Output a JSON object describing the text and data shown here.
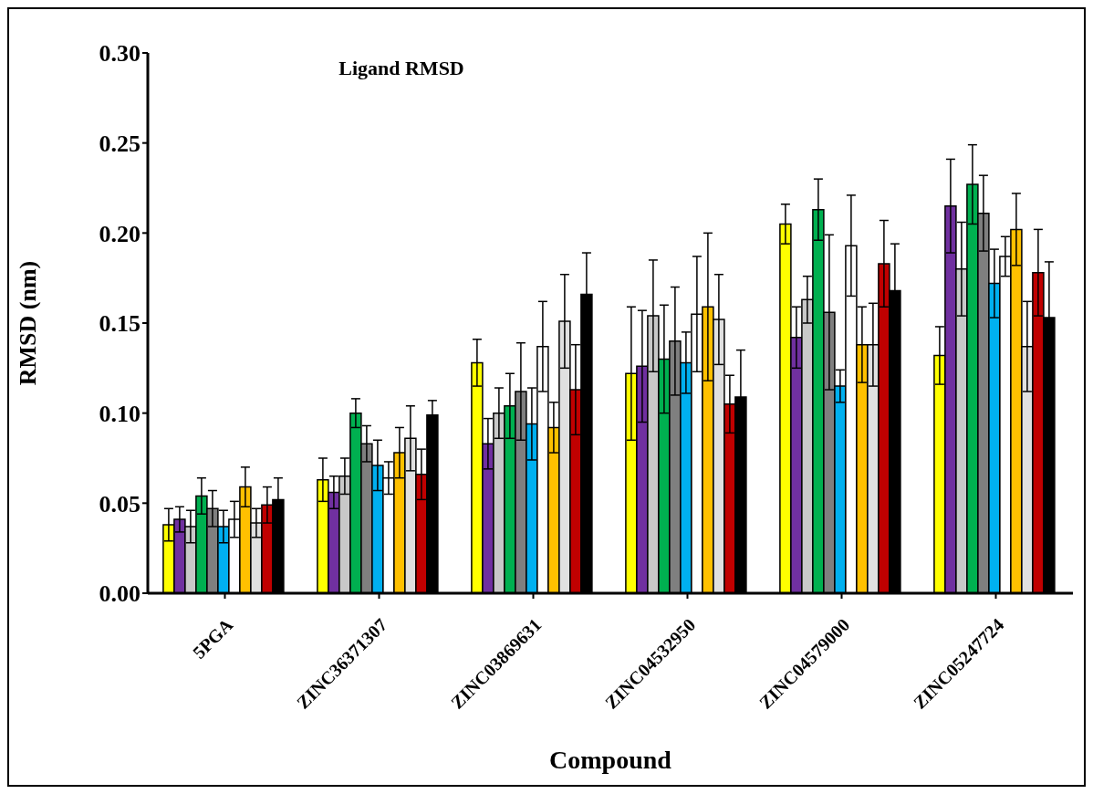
{
  "chart_data": {
    "type": "bar",
    "title": "Ligand RMSD",
    "xlabel": "Compound",
    "ylabel": "RMSD (nm)",
    "categories": [
      "5PGA",
      "ZINC36371307",
      "ZINC03869631",
      "ZINC04532950",
      "ZINC04579000",
      "ZINC05247724"
    ],
    "series": [
      {
        "color": "#ffff00",
        "values": [
          0.038,
          0.063,
          0.128,
          0.122,
          0.205,
          0.132
        ],
        "errors": [
          0.009,
          0.012,
          0.013,
          0.037,
          0.011,
          0.016
        ]
      },
      {
        "color": "#7030a0",
        "values": [
          0.041,
          0.056,
          0.083,
          0.126,
          0.142,
          0.215
        ],
        "errors": [
          0.007,
          0.009,
          0.014,
          0.031,
          0.017,
          0.026
        ]
      },
      {
        "color": "#c8c8c8",
        "values": [
          0.037,
          0.065,
          0.1,
          0.154,
          0.163,
          0.18
        ],
        "errors": [
          0.009,
          0.01,
          0.014,
          0.031,
          0.013,
          0.026
        ]
      },
      {
        "color": "#00b050",
        "values": [
          0.054,
          0.1,
          0.104,
          0.13,
          0.213,
          0.227
        ],
        "errors": [
          0.01,
          0.008,
          0.018,
          0.03,
          0.017,
          0.022
        ]
      },
      {
        "color": "#7f7f7f",
        "values": [
          0.047,
          0.083,
          0.112,
          0.14,
          0.156,
          0.211
        ],
        "errors": [
          0.01,
          0.01,
          0.027,
          0.03,
          0.043,
          0.021
        ]
      },
      {
        "color": "#00b0f0",
        "values": [
          0.037,
          0.071,
          0.094,
          0.128,
          0.115,
          0.172
        ],
        "errors": [
          0.009,
          0.014,
          0.02,
          0.017,
          0.009,
          0.019
        ]
      },
      {
        "color": "#ffffff",
        "values": [
          0.041,
          0.064,
          0.137,
          0.155,
          0.193,
          0.187
        ],
        "errors": [
          0.01,
          0.009,
          0.025,
          0.032,
          0.028,
          0.011
        ]
      },
      {
        "color": "#ffc000",
        "values": [
          0.059,
          0.078,
          0.092,
          0.159,
          0.138,
          0.202
        ],
        "errors": [
          0.011,
          0.014,
          0.014,
          0.041,
          0.021,
          0.02
        ]
      },
      {
        "color": "#e0e0e0",
        "values": [
          0.039,
          0.086,
          0.151,
          0.152,
          0.138,
          0.137
        ],
        "errors": [
          0.008,
          0.018,
          0.026,
          0.025,
          0.023,
          0.025
        ]
      },
      {
        "color": "#c00000",
        "values": [
          0.049,
          0.066,
          0.113,
          0.105,
          0.183,
          0.178
        ],
        "errors": [
          0.01,
          0.014,
          0.025,
          0.016,
          0.024,
          0.024
        ]
      },
      {
        "color": "#000000",
        "values": [
          0.052,
          0.099,
          0.166,
          0.109,
          0.168,
          0.153
        ],
        "errors": [
          0.012,
          0.008,
          0.023,
          0.026,
          0.026,
          0.031
        ]
      }
    ],
    "ylim": [
      0,
      0.3
    ],
    "yticks": [
      {
        "value": 0,
        "label": "0.00"
      },
      {
        "value": 0.05,
        "label": "0.05"
      },
      {
        "value": 0.1,
        "label": "0.10"
      },
      {
        "value": 0.15,
        "label": "0.15"
      },
      {
        "value": 0.2,
        "label": "0.20"
      },
      {
        "value": 0.25,
        "label": "0.25"
      },
      {
        "value": 0.3,
        "label": "0.30"
      }
    ],
    "grid": false,
    "legend": false
  }
}
